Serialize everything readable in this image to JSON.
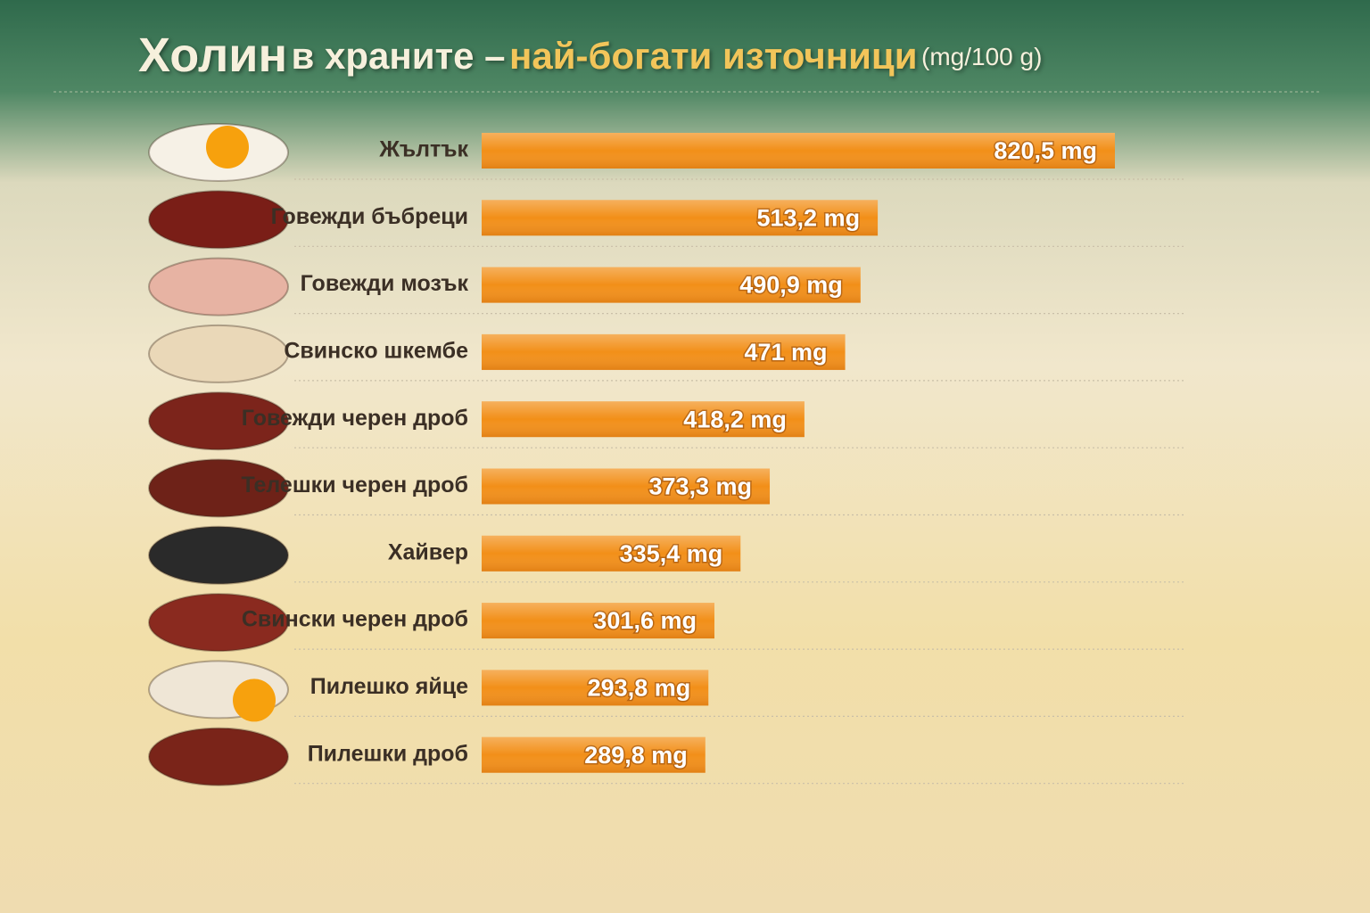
{
  "chart_data": {
    "type": "bar",
    "title": [
      "Холин",
      "в храните –",
      "най-богати източници"
    ],
    "unit": "(mg/100 g)",
    "categories": [
      "Жълтък",
      "Говежди бъбреци",
      "Говежди мозък",
      "Свинско шкембе",
      "Говежди черен дроб",
      "Телешки черен дроб",
      "Хайвер",
      "Свински черен дроб",
      "Пилешко яйце",
      "Пилешки дроб"
    ],
    "values": [
      820.5,
      513.2,
      490.9,
      471,
      418.2,
      373.3,
      335.4,
      301.6,
      293.8,
      289.8
    ],
    "value_labels": [
      "820,5 mg",
      "513,2 mg",
      "490,9 mg",
      "471 mg",
      "418,2 mg",
      "373,3 mg",
      "335,4 mg",
      "301,6 mg",
      "293,8 mg",
      "289,8 mg"
    ],
    "color": "#f28f18"
  }
}
